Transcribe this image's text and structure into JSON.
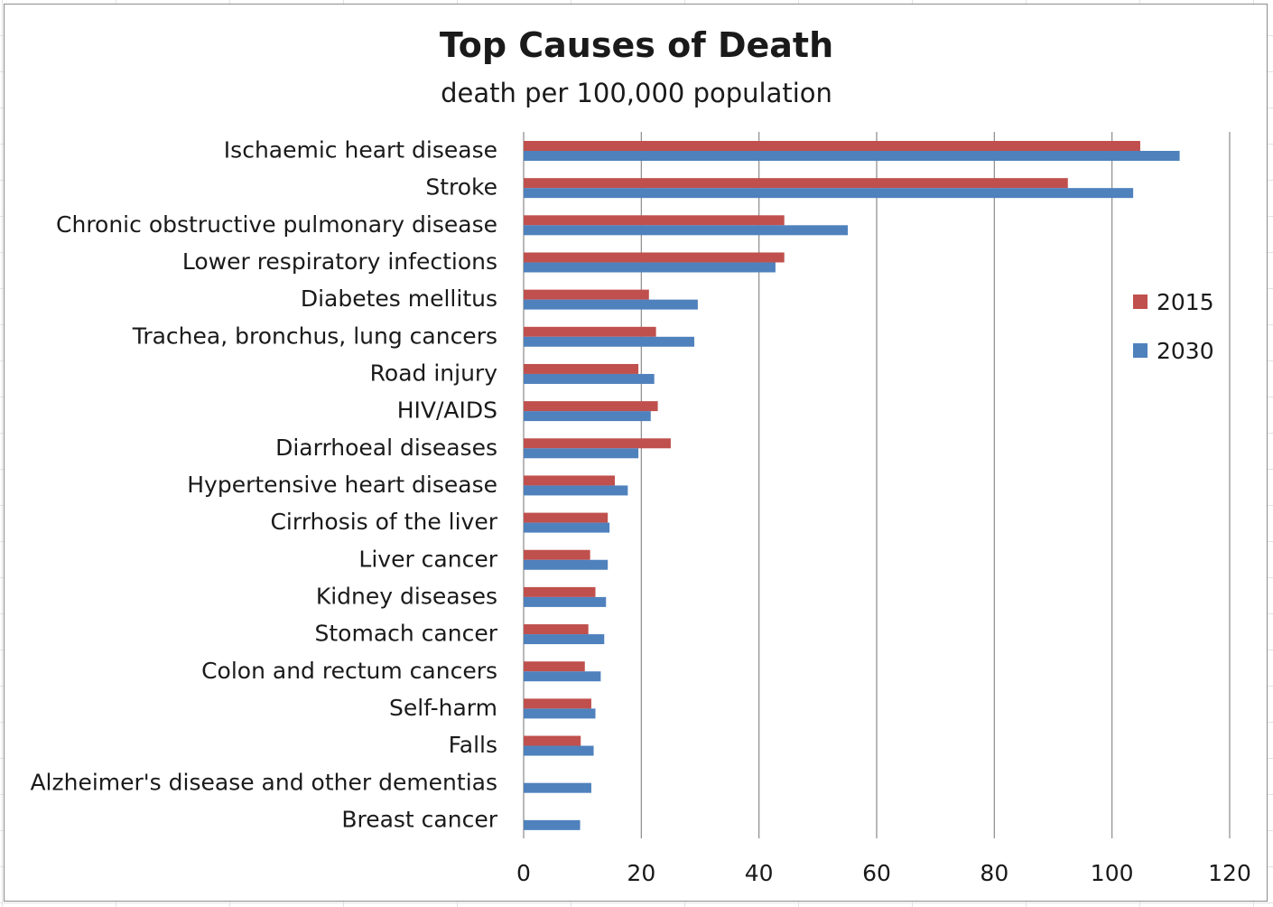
{
  "chart_data": {
    "type": "bar",
    "orientation": "horizontal",
    "title": "Top Causes of Death",
    "subtitle": "death per 100,000 population",
    "categories": [
      "Ischaemic heart disease",
      "Stroke",
      "Chronic obstructive pulmonary disease",
      "Lower respiratory infections",
      "Diabetes mellitus",
      "Trachea, bronchus, lung cancers",
      "Road injury",
      "HIV/AIDS",
      "Diarrhoeal diseases",
      "Hypertensive heart disease",
      "Cirrhosis of the liver",
      "Liver cancer",
      "Kidney diseases",
      "Stomach cancer",
      "Colon and rectum cancers",
      "Self-harm",
      "Falls",
      "Alzheimer's disease and other dementias",
      "Breast cancer"
    ],
    "series": [
      {
        "name": "2015",
        "color": "#c0504d",
        "values": [
          104.8,
          92.5,
          44.3,
          44.3,
          21.3,
          22.5,
          19.5,
          22.8,
          25.0,
          15.5,
          14.3,
          11.3,
          12.2,
          11.0,
          10.4,
          11.5,
          9.7,
          null,
          null
        ]
      },
      {
        "name": "2030",
        "color": "#4f81bd",
        "values": [
          111.5,
          103.6,
          55.1,
          42.8,
          29.6,
          29.0,
          22.2,
          21.6,
          19.5,
          17.7,
          14.6,
          14.3,
          14.0,
          13.7,
          13.1,
          12.2,
          11.9,
          11.5,
          9.6
        ]
      }
    ],
    "xlim": [
      0,
      120
    ],
    "xticks": [
      0,
      20,
      40,
      60,
      80,
      100,
      120
    ],
    "grid": "vertical",
    "legend": "right"
  }
}
